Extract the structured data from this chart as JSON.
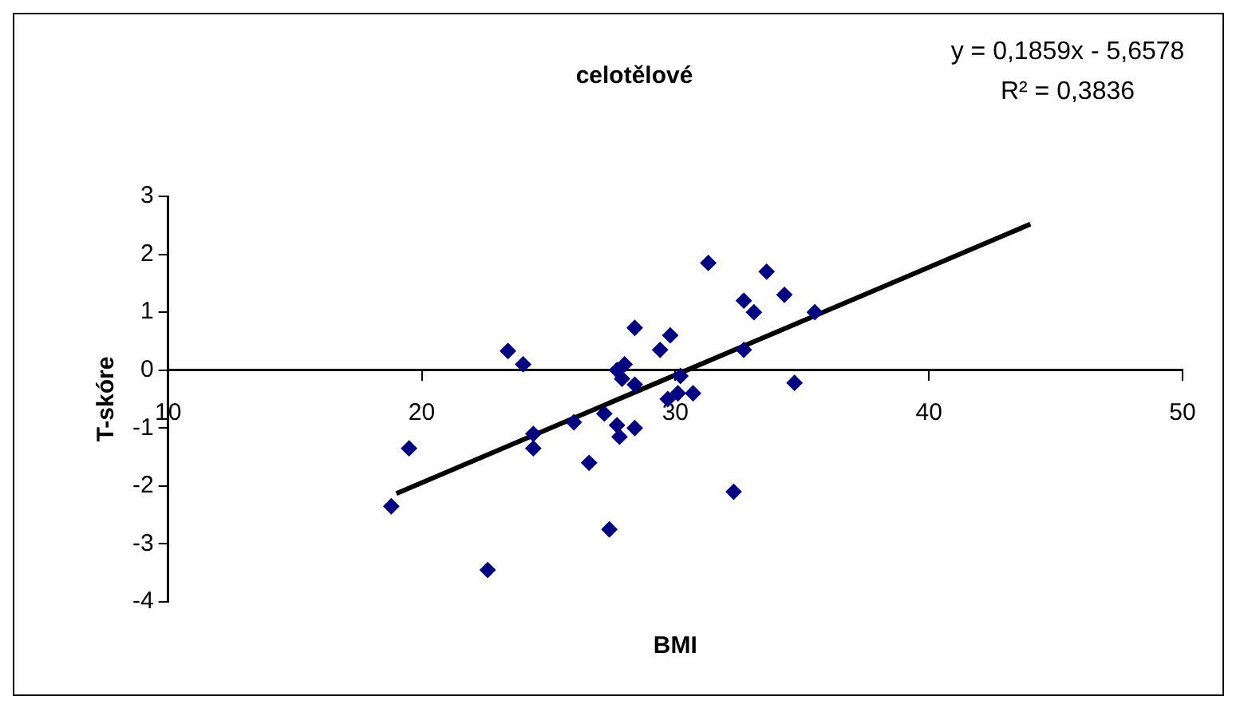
{
  "chart_data": {
    "type": "scatter",
    "title": "celotělové",
    "xlabel": "BMI",
    "ylabel": "T-skóre",
    "xlim": [
      10,
      50
    ],
    "xticks": [
      10,
      20,
      30,
      40,
      50
    ],
    "ylim": [
      -4,
      3
    ],
    "yticks": [
      -4,
      -3,
      -2,
      -1,
      0,
      1,
      2,
      3
    ],
    "grid": false,
    "legend": false,
    "marker": "diamond",
    "annotations": [
      "y = 0,1859x - 5,6578",
      "R² = 0,3836"
    ],
    "series": [
      {
        "color": "#000080",
        "x": [
          18.8,
          19.5,
          23.4,
          24.0,
          24.4,
          24.4,
          22.6,
          26.0,
          26.6,
          27.2,
          27.4,
          27.7,
          27.8,
          27.7,
          28.0,
          27.9,
          28.4,
          28.4,
          28.4,
          29.4,
          29.8,
          29.7,
          30.1,
          30.2,
          30.7,
          31.3,
          32.3,
          32.7,
          32.7,
          33.1,
          33.6,
          34.3,
          34.7,
          35.5
        ],
        "values": [
          -2.35,
          -1.35,
          0.33,
          0.1,
          -1.35,
          -1.1,
          -3.45,
          -0.9,
          -1.6,
          -0.75,
          -2.75,
          -0.95,
          -1.15,
          0,
          0.1,
          -0.15,
          -0.25,
          0.73,
          -1.0,
          0.35,
          0.6,
          -0.5,
          -0.4,
          -0.1,
          -0.4,
          1.85,
          -2.1,
          0.35,
          1.2,
          1.0,
          1.7,
          1.3,
          -0.22,
          1.0
        ]
      },
      {
        "type": "line",
        "color": "#000000",
        "x": [
          19,
          44
        ],
        "values": [
          -2.13,
          2.52
        ],
        "marker": "none",
        "line_style": "solid"
      }
    ]
  }
}
